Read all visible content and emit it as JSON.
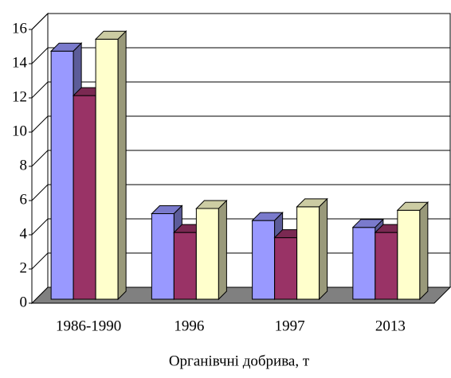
{
  "chart_data": {
    "type": "bar3d",
    "x_label": "Органівчні добрива, т",
    "categories": [
      "1986-1990",
      "1996",
      "1997",
      "2013"
    ],
    "series": [
      {
        "color": "#9999ff",
        "values": [
          14.5,
          5.0,
          4.6,
          4.2
        ]
      },
      {
        "color": "#993366",
        "values": [
          11.9,
          3.9,
          3.6,
          3.9
        ]
      },
      {
        "color": "#ffffcc",
        "values": [
          15.2,
          5.3,
          5.4,
          5.2
        ]
      }
    ],
    "ylim": [
      0,
      16
    ],
    "yticks": [
      0,
      2,
      4,
      6,
      8,
      10,
      12,
      14,
      16
    ],
    "grid": true
  }
}
